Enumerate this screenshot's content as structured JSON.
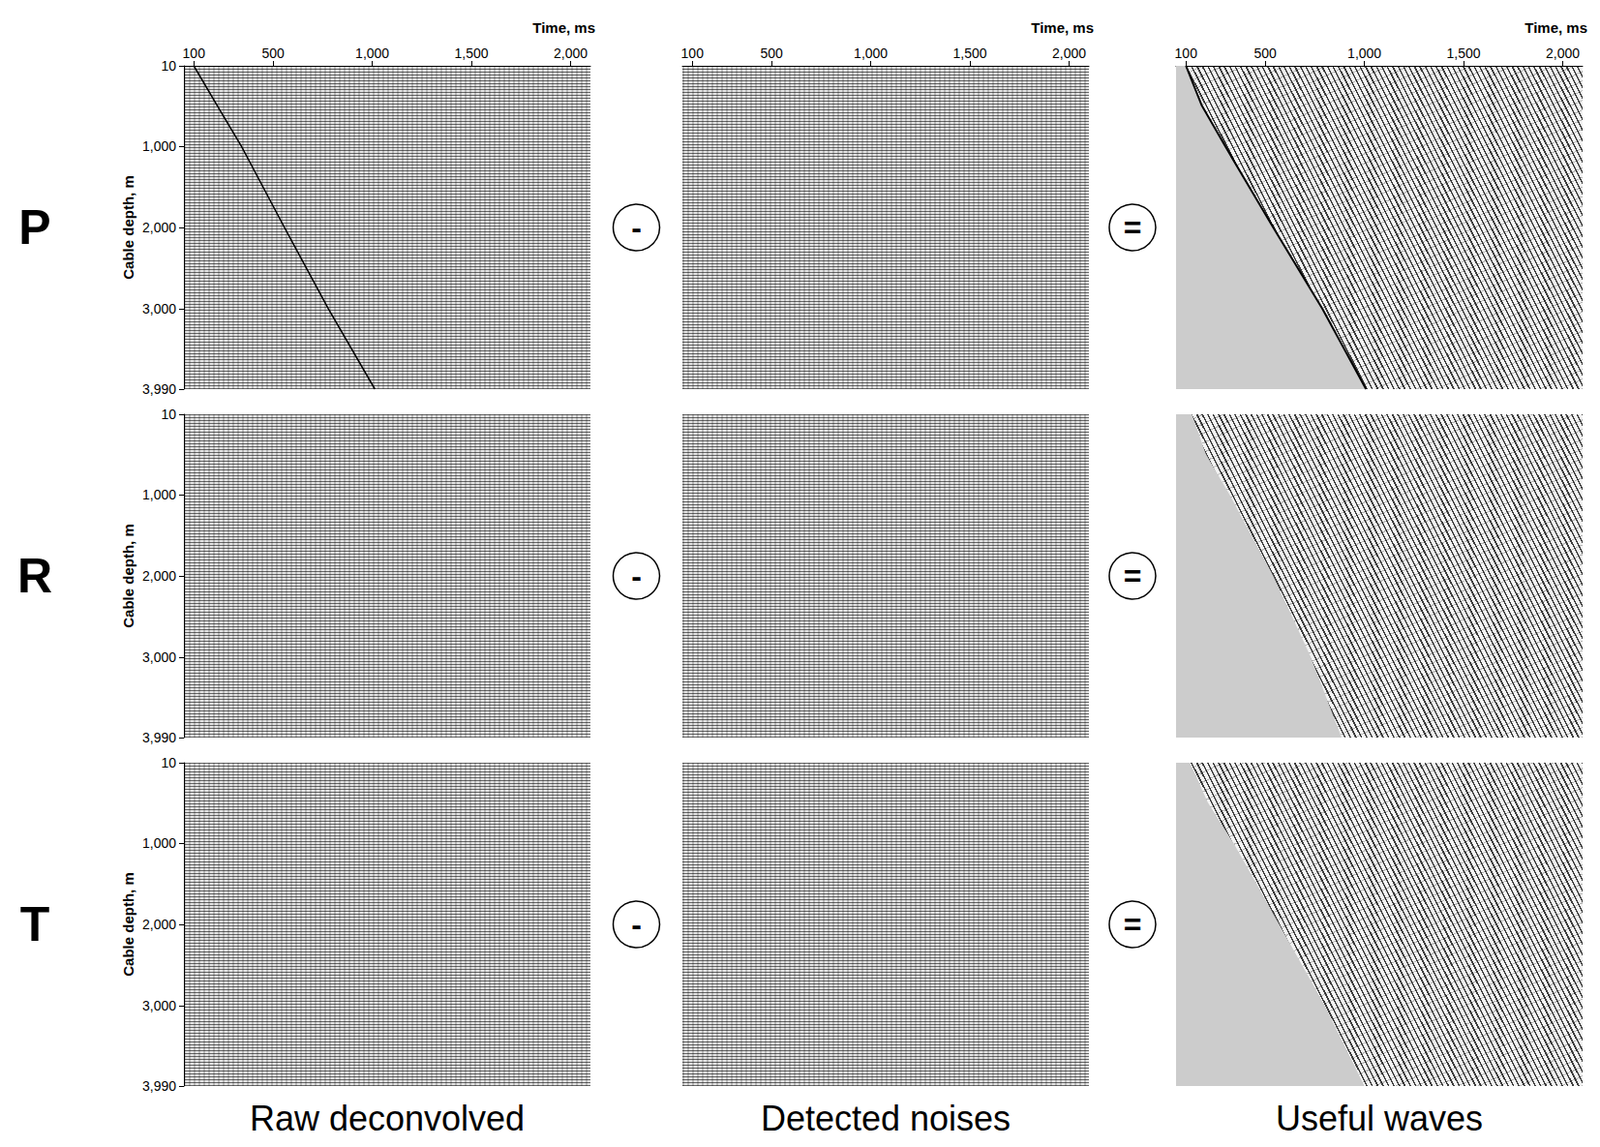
{
  "row_labels": [
    "P",
    "R",
    "T"
  ],
  "column_titles": [
    "Raw deconvolved",
    "Detected noises",
    "Useful waves"
  ],
  "operators": [
    "-",
    "="
  ],
  "chart_data": [
    {
      "type": "line",
      "xlim": [
        50,
        2100
      ],
      "ylim": [
        10,
        3990
      ],
      "xticks": [
        100,
        500,
        1000,
        1500,
        2000
      ],
      "yticks": [
        10,
        1000,
        2000,
        3000,
        3990
      ],
      "x_label": "Time, ms",
      "y_label": "Cable depth, m",
      "series": [
        {
          "type": "line",
          "color": "#000000",
          "x": [
            100,
            218,
            340,
            557,
            778,
            1013
          ],
          "values": [
            10,
            500,
            1000,
            2000,
            3000,
            3990
          ]
        }
      ]
    },
    {
      "type": "line",
      "xlim": [
        50,
        2100
      ],
      "ylim": [
        10,
        3990
      ],
      "xticks": [
        100,
        500,
        1000,
        1500,
        2000
      ],
      "x_label": "Time, ms",
      "tick_labels": "x",
      "series": []
    },
    {
      "type": "line",
      "xlim": [
        50,
        2100
      ],
      "ylim": [
        10,
        3990
      ],
      "xticks": [
        100,
        500,
        1000,
        1500,
        2000
      ],
      "x_label": "Time, ms",
      "tick_labels": "x",
      "series": [
        {
          "type": "area",
          "color": "#cccccc",
          "line_style": "solid",
          "x": [
            100,
            180,
            298,
            540,
            788,
            1008
          ],
          "values": [
            10,
            500,
            1000,
            2000,
            3000,
            3990
          ]
        }
      ]
    },
    {
      "type": "line",
      "xlim": [
        50,
        2100
      ],
      "ylim": [
        10,
        3990
      ],
      "yticks": [
        10,
        1000,
        2000,
        3000,
        3990
      ],
      "y_label": "Cable depth, m",
      "tick_labels": "y",
      "series": []
    },
    {
      "type": "line",
      "xlim": [
        50,
        2100
      ],
      "ylim": [
        10,
        3990
      ],
      "tick_labels": false,
      "series": []
    },
    {
      "type": "line",
      "xlim": [
        50,
        2100
      ],
      "ylim": [
        10,
        3990
      ],
      "tick_labels": false,
      "series": [
        {
          "type": "area",
          "color": "#cccccc",
          "line_style": "none",
          "x": [
            130,
            200,
            320,
            540,
            730,
            885
          ],
          "values": [
            10,
            500,
            1000,
            2000,
            3000,
            3990
          ]
        }
      ]
    },
    {
      "type": "line",
      "xlim": [
        50,
        2100
      ],
      "ylim": [
        10,
        3990
      ],
      "yticks": [
        10,
        1000,
        2000,
        3000,
        3990
      ],
      "y_label": "Cable depth, m",
      "tick_labels": "y",
      "series": []
    },
    {
      "type": "line",
      "xlim": [
        50,
        2100
      ],
      "ylim": [
        10,
        3990
      ],
      "tick_labels": false,
      "series": []
    },
    {
      "type": "line",
      "xlim": [
        50,
        2100
      ],
      "ylim": [
        10,
        3990
      ],
      "tick_labels": false,
      "series": [
        {
          "type": "area",
          "color": "#cccccc",
          "line_style": "none",
          "x": [
            120,
            210,
            340,
            570,
            800,
            1000
          ],
          "values": [
            10,
            500,
            1000,
            2000,
            3000,
            3990
          ]
        }
      ]
    }
  ]
}
